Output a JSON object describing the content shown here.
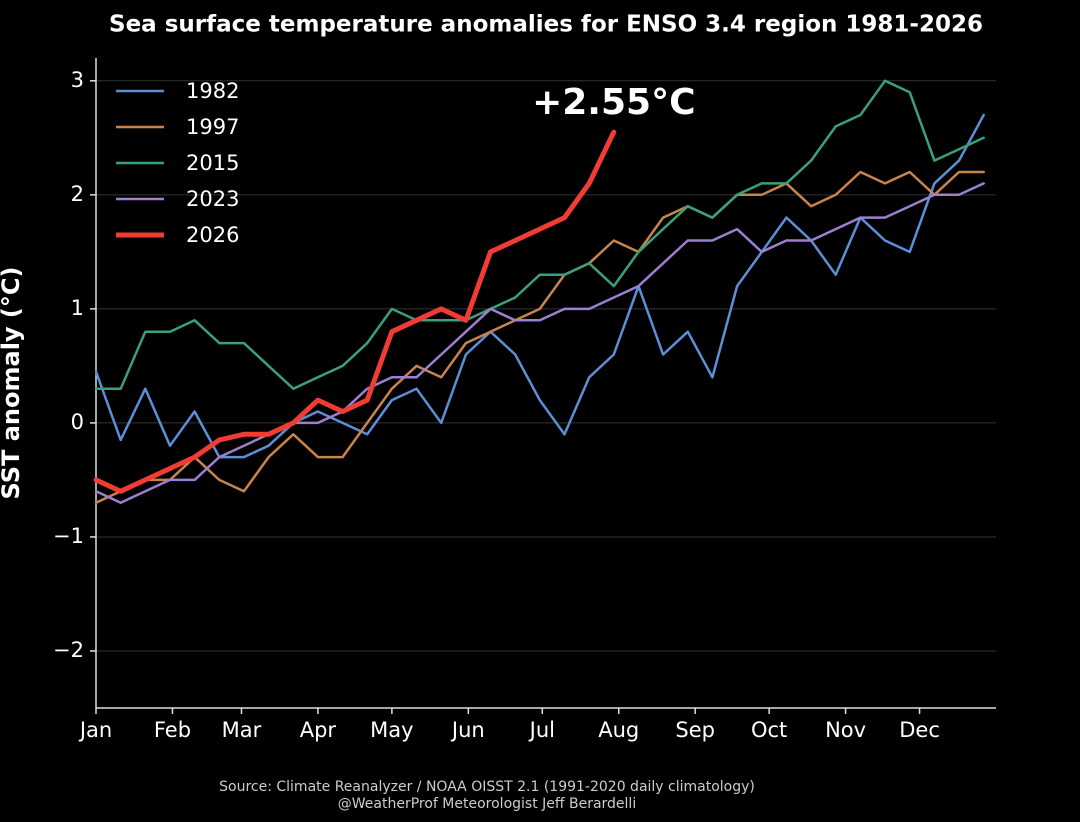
{
  "chart_data": {
    "type": "line",
    "title": "Sea surface temperature anomalies for ENSO 3.4 region 1981-2026",
    "y_label": "SST anomaly (°C)",
    "annotation": "+2.55°C",
    "source": "Source: Climate Reanalyzer / NOAA OISST 2.1 (1991-2020 daily climatology)",
    "credit": "@WeatherProf Meteorologist Jeff Berardelli",
    "x": [
      1,
      11,
      21,
      31,
      41,
      51,
      61,
      71,
      81,
      91,
      101,
      111,
      121,
      131,
      141,
      151,
      161,
      171,
      181,
      191,
      201,
      211,
      221,
      231,
      241,
      251,
      261,
      271,
      281,
      291,
      301,
      311,
      321,
      331,
      341,
      351,
      361
    ],
    "xlim": [
      1,
      366
    ],
    "xticks": [
      {
        "value": 1,
        "label": "Jan"
      },
      {
        "value": 32,
        "label": "Feb"
      },
      {
        "value": 60,
        "label": "Mar"
      },
      {
        "value": 91,
        "label": "Apr"
      },
      {
        "value": 121,
        "label": "May"
      },
      {
        "value": 152,
        "label": "Jun"
      },
      {
        "value": 182,
        "label": "Jul"
      },
      {
        "value": 213,
        "label": "Aug"
      },
      {
        "value": 244,
        "label": "Sep"
      },
      {
        "value": 274,
        "label": "Oct"
      },
      {
        "value": 305,
        "label": "Nov"
      },
      {
        "value": 335,
        "label": "Dec"
      }
    ],
    "ylim": [
      -2.5,
      3.2
    ],
    "yticks": [
      {
        "value": -2,
        "label": "−2"
      },
      {
        "value": -1,
        "label": "−1"
      },
      0,
      1,
      2,
      3
    ],
    "grid": true,
    "legend": "upper left",
    "series": [
      {
        "name": "1982",
        "color": "#5b8fd6",
        "width": 2.5,
        "values": [
          0.45,
          -0.15,
          0.3,
          -0.2,
          0.1,
          -0.3,
          -0.3,
          -0.2,
          0.0,
          0.1,
          0.0,
          -0.1,
          0.2,
          0.3,
          0.0,
          0.6,
          0.8,
          0.6,
          0.2,
          -0.1,
          0.4,
          0.6,
          1.2,
          0.6,
          0.8,
          0.4,
          1.2,
          1.5,
          1.8,
          1.6,
          1.3,
          1.8,
          1.6,
          1.5,
          2.1,
          2.3,
          2.7
        ]
      },
      {
        "name": "1997",
        "color": "#c8844a",
        "width": 2.5,
        "values": [
          -0.7,
          -0.6,
          -0.5,
          -0.5,
          -0.3,
          -0.5,
          -0.6,
          -0.3,
          -0.1,
          -0.3,
          -0.3,
          0.0,
          0.3,
          0.5,
          0.4,
          0.7,
          0.8,
          0.9,
          1.0,
          1.3,
          1.4,
          1.6,
          1.5,
          1.8,
          1.9,
          1.8,
          2.0,
          2.0,
          2.1,
          1.9,
          2.0,
          2.2,
          2.1,
          2.2,
          2.0,
          2.2,
          2.2
        ]
      },
      {
        "name": "2015",
        "color": "#3aa07a",
        "width": 2.5,
        "values": [
          0.3,
          0.3,
          0.8,
          0.8,
          0.9,
          0.7,
          0.7,
          0.5,
          0.3,
          0.4,
          0.5,
          0.7,
          1.0,
          0.9,
          0.9,
          0.9,
          1.0,
          1.1,
          1.3,
          1.3,
          1.4,
          1.2,
          1.5,
          1.7,
          1.9,
          1.8,
          2.0,
          2.1,
          2.1,
          2.3,
          2.6,
          2.7,
          3.0,
          2.9,
          2.3,
          2.4,
          2.5
        ]
      },
      {
        "name": "2023",
        "color": "#9c7fd0",
        "width": 2.5,
        "values": [
          -0.6,
          -0.7,
          -0.6,
          -0.5,
          -0.5,
          -0.3,
          -0.2,
          -0.1,
          0.0,
          0.0,
          0.1,
          0.3,
          0.4,
          0.4,
          0.6,
          0.8,
          1.0,
          0.9,
          0.9,
          1.0,
          1.0,
          1.1,
          1.2,
          1.4,
          1.6,
          1.6,
          1.7,
          1.5,
          1.6,
          1.6,
          1.7,
          1.8,
          1.8,
          1.9,
          2.0,
          2.0,
          2.1
        ]
      },
      {
        "name": "2026",
        "color": "#f03c32",
        "width": 5,
        "values": [
          -0.5,
          -0.6,
          -0.5,
          -0.4,
          -0.3,
          -0.15,
          -0.1,
          -0.1,
          0.0,
          0.2,
          0.1,
          0.2,
          0.8,
          0.9,
          1.0,
          0.9,
          1.5,
          1.6,
          1.7,
          1.8,
          2.1,
          2.55,
          null,
          null,
          null,
          null,
          null,
          null,
          null,
          null,
          null,
          null,
          null,
          null,
          null,
          null,
          null
        ]
      }
    ]
  }
}
